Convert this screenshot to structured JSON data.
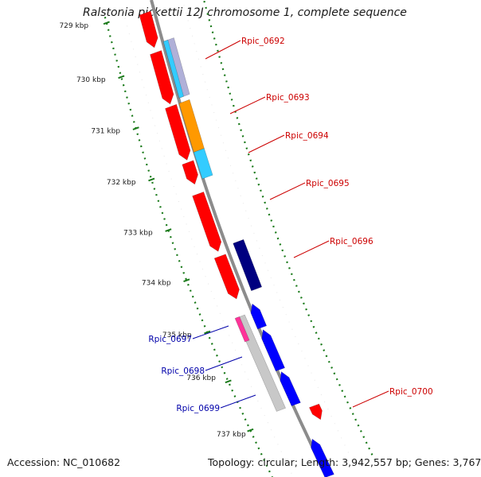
{
  "title": "Ralstonia pickettii 12J chromosome 1, complete sequence",
  "accession_text": "Accession: NC_010682",
  "summary_text": "Topology: circular; Length: 3,942,557 bp; Genes: 3,767",
  "scale_unit": "kbp",
  "ticks": [
    {
      "kbp": 729,
      "label": "729 kbp"
    },
    {
      "kbp": 730,
      "label": "730 kbp"
    },
    {
      "kbp": 731,
      "label": "731 kbp"
    },
    {
      "kbp": 732,
      "label": "732 kbp"
    },
    {
      "kbp": 733,
      "label": "733 kbp"
    },
    {
      "kbp": 734,
      "label": "734 kbp"
    },
    {
      "kbp": 735,
      "label": "735 kbp"
    },
    {
      "kbp": 736,
      "label": "736 kbp"
    },
    {
      "kbp": 737,
      "label": "737 kbp"
    }
  ],
  "gene_labels": [
    {
      "text": "Rpic_0692",
      "strand": "forward",
      "color": "#cc0000"
    },
    {
      "text": "Rpic_0693",
      "strand": "forward",
      "color": "#cc0000"
    },
    {
      "text": "Rpic_0694",
      "strand": "forward",
      "color": "#cc0000"
    },
    {
      "text": "Rpic_0695",
      "strand": "forward",
      "color": "#cc0000"
    },
    {
      "text": "Rpic_0696",
      "strand": "forward",
      "color": "#cc0000"
    },
    {
      "text": "Rpic_0697",
      "strand": "reverse",
      "color": "#0000aa"
    },
    {
      "text": "Rpic_0698",
      "strand": "reverse",
      "color": "#0000aa"
    },
    {
      "text": "Rpic_0699",
      "strand": "reverse",
      "color": "#0000aa"
    },
    {
      "text": "Rpic_0700",
      "strand": "forward",
      "color": "#cc0000"
    }
  ],
  "colors": {
    "backbone": "#8c8c8c",
    "tick_dots": "#1a7a1a",
    "forward_cds": "#ff0000",
    "reverse_cds": "#0000ff",
    "cog_cyan": "#33ccff",
    "cog_orange": "#ff9900",
    "cog_navy": "#000080",
    "cog_pink": "#ff3399",
    "cog_grey": "#c8c8c8"
  }
}
